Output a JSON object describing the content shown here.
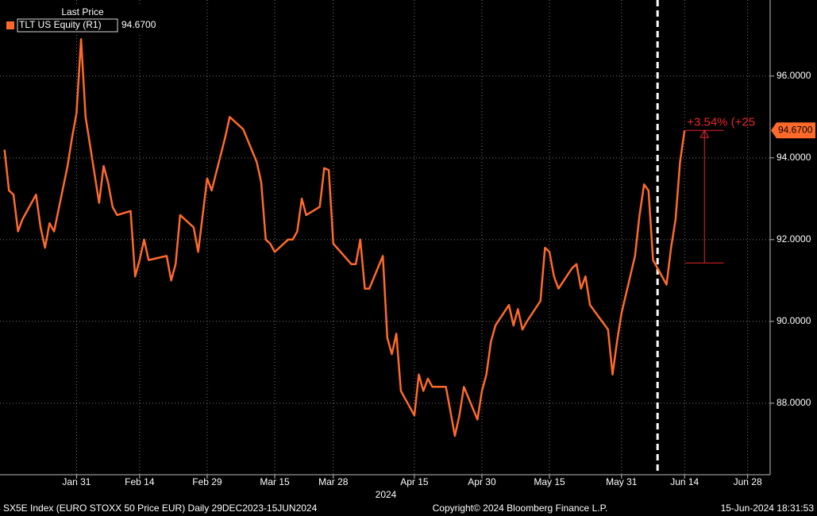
{
  "chart_data": {
    "type": "line",
    "legend_title": "Last Price",
    "series": [
      {
        "name": "TLT US Equity  (R1)",
        "color": "#ff6a2b",
        "value_label": "94.6700",
        "values": [
          94.2,
          93.2,
          93.1,
          92.2,
          92.5,
          93.1,
          92.3,
          91.8,
          92.4,
          92.2,
          93.8,
          94.5,
          95.1,
          96.9,
          95.0,
          92.9,
          93.8,
          93.4,
          92.8,
          92.6,
          92.7,
          91.1,
          91.5,
          92.0,
          91.5,
          91.6,
          91.0,
          91.4,
          92.6,
          92.3,
          91.7,
          92.6,
          93.5,
          93.2,
          94.5,
          95.0,
          94.9,
          94.8,
          94.7,
          93.9,
          93.4,
          92.0,
          91.9,
          91.7,
          92.0,
          92.0,
          92.2,
          93.0,
          92.6,
          92.8,
          93.75,
          93.7,
          91.9,
          91.4,
          91.4,
          92.0,
          90.8,
          90.8,
          91.6,
          89.6,
          89.2,
          89.7,
          88.3,
          87.7,
          88.7,
          88.3,
          88.6,
          88.4,
          88.4,
          87.8,
          87.2,
          87.7,
          88.4,
          87.6,
          88.3,
          88.7,
          89.5,
          89.9,
          90.4,
          89.9,
          90.3,
          89.8,
          90.0,
          90.5,
          91.8,
          91.7,
          91.1,
          90.8,
          91.3,
          91.4,
          90.8,
          91.1,
          90.4,
          89.8,
          88.7,
          89.5,
          90.2,
          91.6,
          92.6,
          93.35,
          93.2,
          91.5,
          90.9,
          91.8,
          92.5,
          93.9,
          94.67
        ]
      }
    ],
    "x": [
      "2024-01-15",
      "2024-01-16",
      "2024-01-17",
      "2024-01-18",
      "2024-01-19",
      "2024-01-22",
      "2024-01-23",
      "2024-01-24",
      "2024-01-25",
      "2024-01-26",
      "2024-01-29",
      "2024-01-30",
      "2024-01-31",
      "2024-02-01",
      "2024-02-02",
      "2024-02-05",
      "2024-02-06",
      "2024-02-07",
      "2024-02-08",
      "2024-02-09",
      "2024-02-12",
      "2024-02-13",
      "2024-02-14",
      "2024-02-15",
      "2024-02-16",
      "2024-02-20",
      "2024-02-21",
      "2024-02-22",
      "2024-02-23",
      "2024-02-26",
      "2024-02-27",
      "2024-02-28",
      "2024-02-29",
      "2024-03-01",
      "2024-03-04",
      "2024-03-05",
      "2024-03-06",
      "2024-03-07",
      "2024-03-08",
      "2024-03-11",
      "2024-03-12",
      "2024-03-13",
      "2024-03-14",
      "2024-03-15",
      "2024-03-18",
      "2024-03-19",
      "2024-03-20",
      "2024-03-21",
      "2024-03-22",
      "2024-03-25",
      "2024-03-26",
      "2024-03-27",
      "2024-03-28",
      "2024-04-01",
      "2024-04-02",
      "2024-04-03",
      "2024-04-04",
      "2024-04-05",
      "2024-04-08",
      "2024-04-09",
      "2024-04-10",
      "2024-04-11",
      "2024-04-12",
      "2024-04-15",
      "2024-04-16",
      "2024-04-17",
      "2024-04-18",
      "2024-04-19",
      "2024-04-22",
      "2024-04-23",
      "2024-04-24",
      "2024-04-25",
      "2024-04-26",
      "2024-04-29",
      "2024-04-30",
      "2024-05-01",
      "2024-05-02",
      "2024-05-03",
      "2024-05-06",
      "2024-05-07",
      "2024-05-08",
      "2024-05-09",
      "2024-05-10",
      "2024-05-13",
      "2024-05-14",
      "2024-05-15",
      "2024-05-16",
      "2024-05-17",
      "2024-05-20",
      "2024-05-21",
      "2024-05-22",
      "2024-05-23",
      "2024-05-24",
      "2024-05-28",
      "2024-05-29",
      "2024-05-30",
      "2024-05-31",
      "2024-06-03",
      "2024-06-04",
      "2024-06-05",
      "2024-06-06",
      "2024-06-07",
      "2024-06-10",
      "2024-06-11",
      "2024-06-12",
      "2024-06-13",
      "2024-06-14"
    ],
    "xlim": [
      "2024-01-14",
      "2024-07-03"
    ],
    "xticks": [
      {
        "value": "2024-01-31",
        "label": "Jan 31"
      },
      {
        "value": "2024-02-14",
        "label": "Feb 14"
      },
      {
        "value": "2024-02-29",
        "label": "Feb 29"
      },
      {
        "value": "2024-03-15",
        "label": "Mar 15"
      },
      {
        "value": "2024-03-28",
        "label": "Mar 28"
      },
      {
        "value": "2024-04-15",
        "label": "Apr 15"
      },
      {
        "value": "2024-04-30",
        "label": "Apr 30"
      },
      {
        "value": "2024-05-15",
        "label": "May 15"
      },
      {
        "value": "2024-05-31",
        "label": "May 31"
      },
      {
        "value": "2024-06-14",
        "label": "Jun 14"
      },
      {
        "value": "2024-06-28",
        "label": "Jun 28"
      }
    ],
    "x_year_label": "2024",
    "ylim": [
      86.25,
      97.86
    ],
    "yticks": [
      {
        "value": 88,
        "label": "88.0000"
      },
      {
        "value": 90,
        "label": "90.0000"
      },
      {
        "value": 92,
        "label": "92.0000"
      },
      {
        "value": 94,
        "label": "94.0000"
      },
      {
        "value": 96,
        "label": "96.0000"
      }
    ],
    "grid": true,
    "vline": "2024-06-08",
    "annotation": {
      "text": "+3.54% (+25",
      "from": 91.43
    },
    "footer": {
      "left": "SX5E Index (EURO STOXX 50 Price EUR)  Daily 29DEC2023-15JUN2024",
      "center": "Copyright© 2024 Bloomberg Finance L.P.",
      "right": "15-Jun-2024 18:31:53"
    }
  }
}
